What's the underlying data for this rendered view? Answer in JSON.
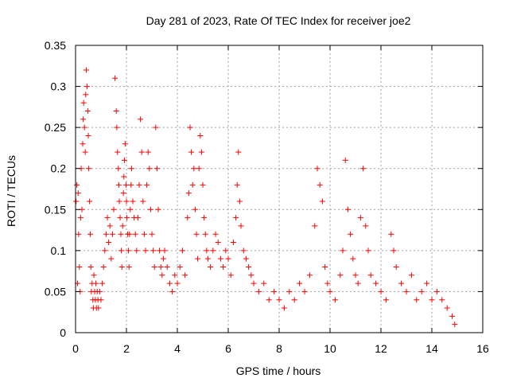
{
  "chart_data": {
    "type": "scatter",
    "title": "Day 281 of 2023, Rate Of TEC Index for receiver joe2",
    "xlabel": "GPS time / hours",
    "ylabel": "ROTI / TECUs",
    "xlim": [
      0,
      16
    ],
    "ylim": [
      0,
      0.35
    ],
    "x_ticks": [
      0,
      2,
      4,
      6,
      8,
      10,
      12,
      14,
      16
    ],
    "y_ticks": [
      0,
      0.05,
      0.1,
      0.15,
      0.2,
      0.25,
      0.3,
      0.35
    ],
    "x_tick_labels": [
      "0",
      "2",
      "4",
      "6",
      "8",
      "10",
      "12",
      "14",
      "16"
    ],
    "y_tick_labels": [
      "0",
      "0.05",
      "0.1",
      "0.15",
      "0.2",
      "0.25",
      "0.3",
      "0.35"
    ],
    "grid": true,
    "marker": "+",
    "colors": {
      "points": "#ff0000",
      "grid": "#a0a0a0",
      "axis": "#000000"
    },
    "series": [
      {
        "x": [
          0.02,
          0.05,
          0.08,
          0.1,
          0.12,
          0.15,
          0.18,
          0.2,
          0.22,
          0.25,
          0.28,
          0.3,
          0.32,
          0.35,
          0.38,
          0.4,
          0.42,
          0.45,
          0.48,
          0.5,
          0.52,
          0.55,
          0.58,
          0.6,
          0.62,
          0.65,
          0.68,
          0.7,
          0.72,
          0.75,
          0.78,
          0.8,
          0.82,
          0.85,
          0.88,
          0.9,
          0.95,
          1.0,
          1.05,
          1.1,
          1.15,
          1.2,
          1.25,
          1.3,
          1.35,
          1.4,
          1.45,
          1.5,
          1.55,
          1.6,
          1.62,
          1.65,
          1.68,
          1.7,
          1.72,
          1.75,
          1.78,
          1.8,
          1.82,
          1.85,
          1.88,
          1.9,
          1.92,
          1.95,
          1.98,
          2.0,
          2.02,
          2.05,
          2.08,
          2.1,
          2.12,
          2.15,
          2.18,
          2.2,
          2.25,
          2.3,
          2.35,
          2.4,
          2.45,
          2.5,
          2.55,
          2.6,
          2.65,
          2.7,
          2.75,
          2.8,
          2.85,
          2.9,
          2.95,
          3.0,
          3.05,
          3.1,
          3.15,
          3.2,
          3.25,
          3.3,
          3.35,
          3.4,
          3.45,
          3.5,
          3.6,
          3.7,
          3.8,
          3.9,
          4.0,
          4.1,
          4.2,
          4.3,
          4.4,
          4.45,
          4.5,
          4.55,
          4.6,
          4.65,
          4.7,
          4.75,
          4.8,
          4.85,
          4.9,
          4.95,
          5.0,
          5.05,
          5.1,
          5.15,
          5.2,
          5.3,
          5.4,
          5.5,
          5.6,
          5.7,
          5.8,
          5.9,
          6.0,
          6.1,
          6.2,
          6.3,
          6.35,
          6.4,
          6.45,
          6.5,
          6.6,
          6.7,
          6.8,
          6.9,
          7.0,
          7.2,
          7.4,
          7.6,
          7.8,
          8.0,
          8.2,
          8.4,
          8.6,
          8.8,
          9.0,
          9.2,
          9.4,
          9.5,
          9.6,
          9.7,
          9.8,
          9.9,
          10.0,
          10.2,
          10.4,
          10.5,
          10.6,
          10.7,
          10.8,
          10.9,
          11.0,
          11.1,
          11.2,
          11.3,
          11.4,
          11.5,
          11.6,
          11.8,
          12.0,
          12.2,
          12.4,
          12.5,
          12.6,
          12.8,
          13.0,
          13.2,
          13.4,
          13.6,
          13.8,
          14.0,
          14.2,
          14.4,
          14.6,
          14.8,
          14.9
        ],
        "y": [
          0.16,
          0.18,
          0.06,
          0.17,
          0.12,
          0.08,
          0.05,
          0.14,
          0.2,
          0.15,
          0.23,
          0.26,
          0.28,
          0.25,
          0.22,
          0.29,
          0.32,
          0.3,
          0.27,
          0.24,
          0.2,
          0.16,
          0.12,
          0.08,
          0.05,
          0.06,
          0.04,
          0.03,
          0.07,
          0.05,
          0.04,
          0.06,
          0.03,
          0.05,
          0.04,
          0.03,
          0.05,
          0.04,
          0.06,
          0.08,
          0.1,
          0.12,
          0.14,
          0.11,
          0.13,
          0.09,
          0.12,
          0.15,
          0.31,
          0.27,
          0.25,
          0.22,
          0.2,
          0.18,
          0.16,
          0.14,
          0.12,
          0.1,
          0.08,
          0.13,
          0.17,
          0.19,
          0.21,
          0.23,
          0.18,
          0.16,
          0.14,
          0.12,
          0.1,
          0.08,
          0.12,
          0.15,
          0.18,
          0.2,
          0.16,
          0.14,
          0.12,
          0.1,
          0.14,
          0.18,
          0.26,
          0.22,
          0.16,
          0.12,
          0.1,
          0.18,
          0.22,
          0.2,
          0.15,
          0.12,
          0.1,
          0.08,
          0.25,
          0.2,
          0.15,
          0.1,
          0.08,
          0.07,
          0.09,
          0.1,
          0.08,
          0.06,
          0.05,
          0.07,
          0.06,
          0.08,
          0.1,
          0.07,
          0.14,
          0.17,
          0.25,
          0.22,
          0.18,
          0.2,
          0.15,
          0.12,
          0.09,
          0.2,
          0.24,
          0.22,
          0.18,
          0.14,
          0.12,
          0.1,
          0.09,
          0.08,
          0.1,
          0.12,
          0.11,
          0.09,
          0.08,
          0.1,
          0.09,
          0.07,
          0.11,
          0.14,
          0.18,
          0.22,
          0.16,
          0.13,
          0.1,
          0.09,
          0.08,
          0.07,
          0.06,
          0.05,
          0.06,
          0.04,
          0.05,
          0.04,
          0.03,
          0.05,
          0.04,
          0.06,
          0.05,
          0.07,
          0.13,
          0.2,
          0.18,
          0.16,
          0.08,
          0.06,
          0.05,
          0.04,
          0.07,
          0.1,
          0.21,
          0.15,
          0.12,
          0.09,
          0.07,
          0.06,
          0.14,
          0.2,
          0.13,
          0.1,
          0.07,
          0.06,
          0.05,
          0.04,
          0.12,
          0.1,
          0.08,
          0.06,
          0.05,
          0.07,
          0.04,
          0.05,
          0.06,
          0.04,
          0.05,
          0.04,
          0.03,
          0.02,
          0.01
        ]
      }
    ]
  }
}
